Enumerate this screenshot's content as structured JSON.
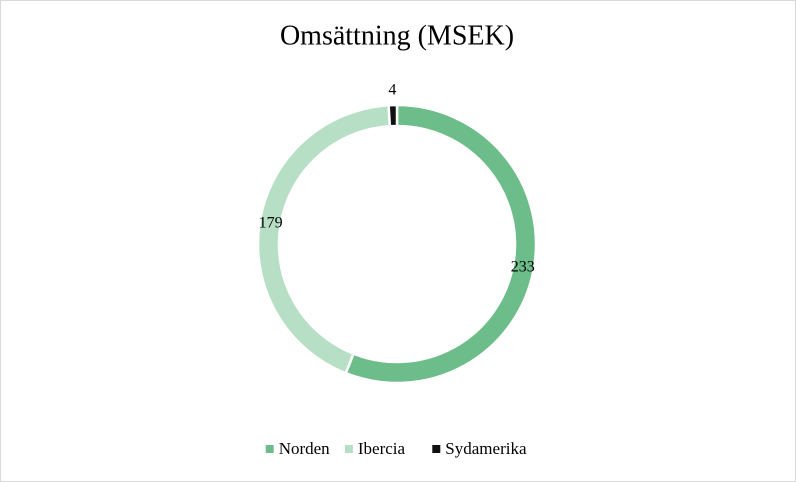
{
  "chart_data": {
    "type": "donut",
    "title": "Omsättning (MSEK)",
    "categories": [
      "Norden",
      "Ibercia",
      "Sydamerika"
    ],
    "values": [
      233,
      179,
      4
    ],
    "colors": [
      "#6dbd8a",
      "#b7dfc5",
      "#111111"
    ],
    "legend": "bottom"
  }
}
